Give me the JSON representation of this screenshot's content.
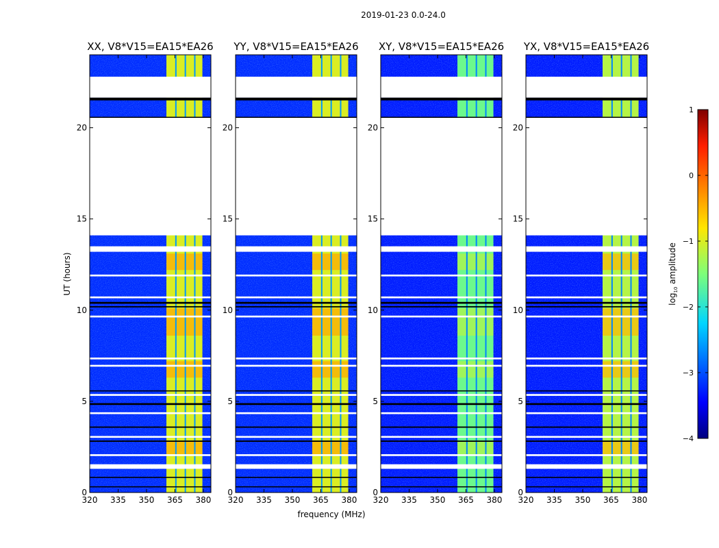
{
  "chart_data": {
    "type": "heatmap",
    "title": "2019-01-23 0.0-24.0",
    "xlabel": "frequency (MHz)",
    "ylabel": "UT (hours)",
    "xlim": [
      320,
      384
    ],
    "ylim": [
      0,
      24
    ],
    "xticks": [
      320,
      335,
      350,
      365,
      380
    ],
    "yticks": [
      0,
      5,
      10,
      15,
      20
    ],
    "colorbar": {
      "label": "log10 amplitude",
      "label_main": "log",
      "label_sub": "10",
      "label_rest": " amplitude",
      "range": [
        -4,
        1
      ],
      "ticks": [
        1,
        0,
        -1,
        -2,
        -3,
        -4
      ],
      "tick_labels": [
        "1",
        "0",
        "−1",
        "−2",
        "−3",
        "−4"
      ],
      "colormap": "jet"
    },
    "panels": [
      {
        "title": "XX, V8*V15=EA15*EA26",
        "background_level": -3.2,
        "band_level": -1.0,
        "hot_level": -0.4
      },
      {
        "title": "YY, V8*V15=EA15*EA26",
        "background_level": -3.2,
        "band_level": -1.0,
        "hot_level": -0.4
      },
      {
        "title": "XY, V8*V15=EA15*EA26",
        "background_level": -3.3,
        "band_level": -1.6,
        "hot_level": -1.2
      },
      {
        "title": "YX, V8*V15=EA15*EA26",
        "background_level": -3.3,
        "band_level": -1.2,
        "hot_level": -0.5
      }
    ],
    "bright_band_mhz": [
      360.5,
      379.5
    ],
    "band_gaps_mhz": [
      365.5,
      370.5,
      375.5
    ],
    "flagged_hours": [
      [
        21.65,
        22.8
      ],
      [
        14.1,
        20.55
      ],
      [
        13.2,
        13.5
      ],
      [
        1.3,
        1.55
      ],
      [
        11.85,
        11.95
      ],
      [
        10.65,
        10.75
      ],
      [
        9.6,
        9.7
      ],
      [
        7.3,
        7.4
      ],
      [
        6.9,
        7.0
      ],
      [
        5.3,
        5.4
      ],
      [
        4.3,
        4.4
      ],
      [
        3.0,
        3.1
      ],
      [
        2.0,
        2.1
      ]
    ],
    "gap_hours": [
      [
        21.5,
        21.65
      ],
      [
        20.55,
        20.6
      ],
      [
        10.35,
        10.45
      ],
      [
        10.15,
        10.22
      ],
      [
        5.55,
        5.6
      ],
      [
        4.8,
        4.9
      ],
      [
        3.55,
        3.62
      ],
      [
        2.78,
        2.85
      ],
      [
        0.8,
        0.86
      ],
      [
        0.3,
        0.34
      ]
    ],
    "hot_hours": [
      [
        12.2,
        13.1
      ],
      [
        8.6,
        10.1
      ],
      [
        6.3,
        7.2
      ],
      [
        2.1,
        2.8
      ]
    ]
  }
}
